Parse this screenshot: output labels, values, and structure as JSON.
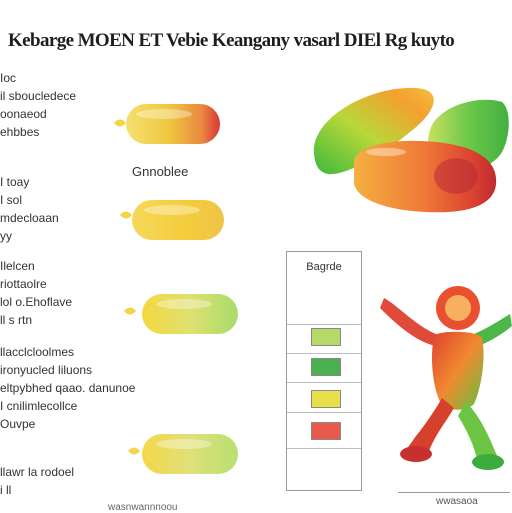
{
  "title": "Kebarge MOEN ET Vebie Keangany vasarl DIEl Rg kuyto",
  "text_blocks": [
    {
      "lines": [
        "Ioc",
        "il sboucledece",
        "oonaeod",
        "ehbbes"
      ]
    },
    {
      "lines": [
        "I toay",
        "I sol",
        "mdecloaan",
        "yy"
      ]
    },
    {
      "lines": [
        "Ilelcen",
        "riottaolre",
        "lol o.Ehoflave",
        "ll s rtn"
      ]
    },
    {
      "lines": [
        "llacclcloolmes",
        "ironyucled liluons",
        "eltpybhed qaao. danunoe",
        "I cnilimlecollce",
        "Ouvpe"
      ]
    },
    {
      "lines": [
        "llawr la rodoel",
        "i ll"
      ]
    }
  ],
  "caption": "Gnnoblee",
  "legend": {
    "title": "Bagrde",
    "swatch_colors": [
      "#b6d96a",
      "#4caf50",
      "#e8e04a",
      "#e85a4a"
    ]
  },
  "baseline_label": "wwasaoa",
  "bottom_text": "wasnwannnoou",
  "icons": [
    "capsule-icon",
    "gummy-candy-icon",
    "gummy-figure-icon",
    "tip-marker-icon"
  ],
  "colors": {
    "capsule_gold": "#f0c840",
    "capsule_red": "#e04848",
    "capsule_green": "#b8e070",
    "candy_green": "#5cc040",
    "candy_orange": "#f07030",
    "figure_red": "#d8402e"
  }
}
